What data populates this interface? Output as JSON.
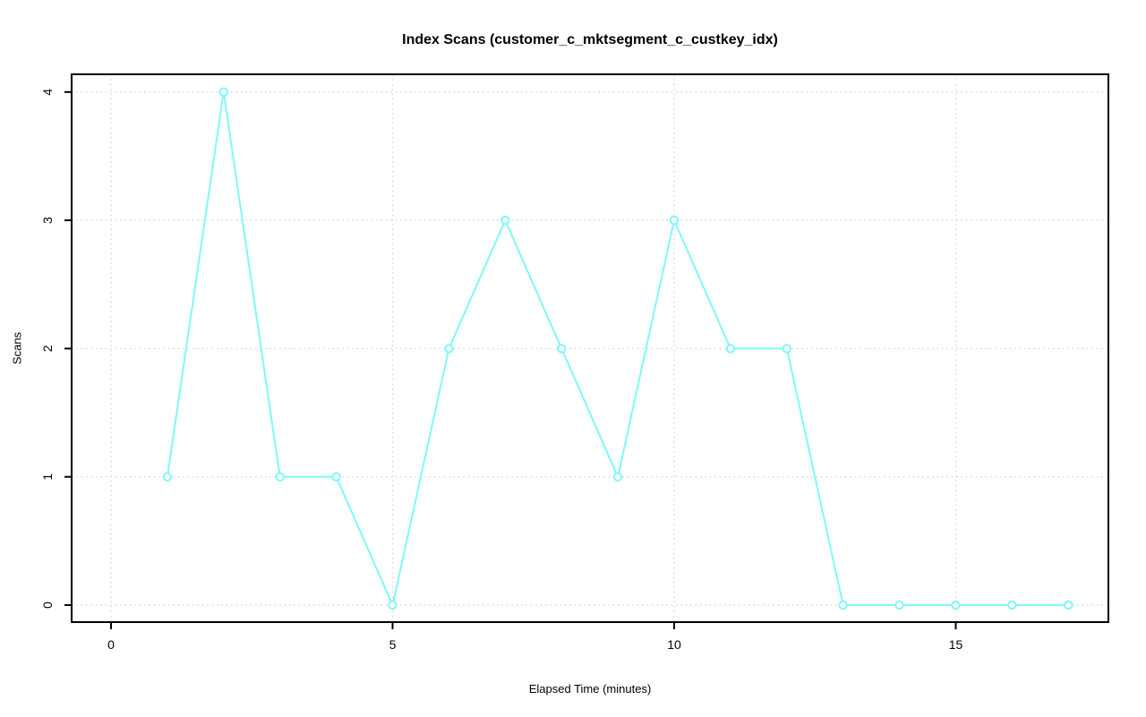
{
  "chart_data": {
    "type": "line",
    "title": "Index Scans (customer_c_mktsegment_c_custkey_idx)",
    "xlabel": "Elapsed Time (minutes)",
    "ylabel": "Scans",
    "x": [
      1,
      2,
      3,
      4,
      5,
      6,
      7,
      8,
      9,
      10,
      11,
      12,
      13,
      14,
      15,
      16,
      17
    ],
    "values": [
      1,
      4,
      1,
      1,
      0,
      2,
      3,
      2,
      1,
      3,
      2,
      2,
      0,
      0,
      0,
      0,
      0
    ],
    "x_ticks": [
      0,
      5,
      10,
      15
    ],
    "y_ticks": [
      0,
      1,
      2,
      3,
      4
    ],
    "xlim": [
      0,
      17.6
    ],
    "ylim": [
      0,
      4
    ],
    "grid": true,
    "grid_style": "dotted",
    "marker": "open-circle",
    "legend": null,
    "colors": {
      "line": "#7FF8F8",
      "marker_fill": "#FFFFFF",
      "grid": "#D3D3D3",
      "axis": "#000000",
      "text": "#000000",
      "background": "#FFFFFF"
    }
  }
}
